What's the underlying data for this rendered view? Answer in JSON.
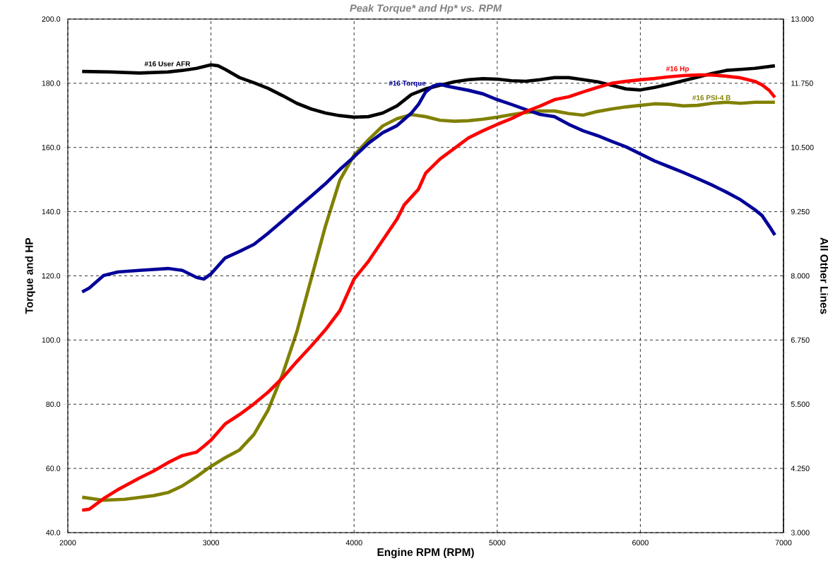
{
  "chart_data": {
    "type": "line",
    "title": "Peak Torque* and Hp* vs. RPM",
    "xlabel": "Engine RPM (RPM)",
    "ylabel": "Torque and HP",
    "y2label": "All Other Lines",
    "xlim": [
      2000,
      7000
    ],
    "xticks": [
      2000,
      3000,
      4000,
      5000,
      6000,
      7000
    ],
    "ylim": [
      40,
      200
    ],
    "yticks": [
      {
        "value": 40,
        "label": "40.0"
      },
      {
        "value": 60,
        "label": "60.0"
      },
      {
        "value": 80,
        "label": "80.0"
      },
      {
        "value": 100,
        "label": "100.0"
      },
      {
        "value": 120,
        "label": "120.0"
      },
      {
        "value": 140,
        "label": "140.0"
      },
      {
        "value": 160,
        "label": "160.0"
      },
      {
        "value": 180,
        "label": "180.0"
      },
      {
        "value": 200,
        "label": "200.0"
      }
    ],
    "y2lim": [
      3,
      13
    ],
    "y2ticks": [
      {
        "value": 3,
        "label": "3.000"
      },
      {
        "value": 4.25,
        "label": "4.250"
      },
      {
        "value": 5.5,
        "label": "5.500"
      },
      {
        "value": 6.75,
        "label": "6.750"
      },
      {
        "value": 8,
        "label": "8.000"
      },
      {
        "value": 9.25,
        "label": "9.250"
      },
      {
        "value": 10.5,
        "label": "10.500"
      },
      {
        "value": 11.75,
        "label": "11.750"
      },
      {
        "value": 13,
        "label": "13.000"
      }
    ],
    "grid": true,
    "marker": "none",
    "line_style": "solid",
    "series": [
      {
        "name": "#16 User AFR",
        "color": "#000000",
        "axis": "y2",
        "x": [
          2100,
          2300,
          2500,
          2700,
          2800,
          2900,
          3000,
          3050,
          3100,
          3200,
          3300,
          3400,
          3500,
          3600,
          3700,
          3800,
          3900,
          4000,
          4100,
          4200,
          4300,
          4400,
          4500,
          4600,
          4700,
          4800,
          4900,
          5000,
          5100,
          5200,
          5300,
          5400,
          5500,
          5600,
          5700,
          5800,
          5900,
          6000,
          6100,
          6200,
          6300,
          6400,
          6500,
          6600,
          6700,
          6800,
          6940
        ],
        "values": [
          11.98,
          11.97,
          11.95,
          11.97,
          12.0,
          12.04,
          12.11,
          12.09,
          12.02,
          11.86,
          11.76,
          11.65,
          11.51,
          11.36,
          11.25,
          11.17,
          11.12,
          11.09,
          11.1,
          11.17,
          11.31,
          11.53,
          11.64,
          11.71,
          11.78,
          11.82,
          11.84,
          11.83,
          11.8,
          11.79,
          11.82,
          11.86,
          11.86,
          11.82,
          11.78,
          11.71,
          11.64,
          11.62,
          11.67,
          11.73,
          11.8,
          11.87,
          11.94,
          12.0,
          12.02,
          12.04,
          12.09
        ]
      },
      {
        "name": "#16 Torque",
        "color": "#000099",
        "x": [
          2100,
          2150,
          2250,
          2350,
          2500,
          2700,
          2800,
          2900,
          2950,
          3000,
          3100,
          3200,
          3300,
          3400,
          3500,
          3600,
          3700,
          3800,
          3900,
          4000,
          4100,
          4200,
          4300,
          4400,
          4450,
          4500,
          4550,
          4600,
          4650,
          4800,
          4900,
          5000,
          5100,
          5200,
          5300,
          5400,
          5500,
          5600,
          5700,
          5800,
          5900,
          6000,
          6100,
          6200,
          6300,
          6400,
          6500,
          6600,
          6700,
          6800,
          6850,
          6900,
          6940
        ],
        "values": [
          115.0,
          116.2,
          120.1,
          121.2,
          121.7,
          122.3,
          121.7,
          119.5,
          119.0,
          120.6,
          125.6,
          127.6,
          129.8,
          133.3,
          137.1,
          141.0,
          144.8,
          148.7,
          153.1,
          157.1,
          161.3,
          164.6,
          166.8,
          170.7,
          173.4,
          177.3,
          179.1,
          179.7,
          179.1,
          177.8,
          176.7,
          174.9,
          173.4,
          171.8,
          170.3,
          169.6,
          167.2,
          165.2,
          163.7,
          161.9,
          160.2,
          158.0,
          155.8,
          154.0,
          152.2,
          150.3,
          148.3,
          146.1,
          143.7,
          140.6,
          138.8,
          135.5,
          132.7
        ]
      },
      {
        "name": "#16 Hp",
        "color": "#ff0000",
        "x": [
          2100,
          2150,
          2250,
          2350,
          2500,
          2600,
          2700,
          2800,
          2900,
          2950,
          3000,
          3100,
          3200,
          3300,
          3400,
          3500,
          3600,
          3700,
          3800,
          3900,
          4000,
          4100,
          4200,
          4300,
          4350,
          4450,
          4500,
          4600,
          4700,
          4800,
          4900,
          5000,
          5100,
          5200,
          5300,
          5400,
          5500,
          5600,
          5700,
          5800,
          5900,
          6000,
          6100,
          6200,
          6300,
          6400,
          6500,
          6600,
          6700,
          6800,
          6850,
          6900,
          6940
        ],
        "values": [
          47.0,
          47.3,
          50.6,
          53.4,
          57.0,
          59.2,
          61.8,
          64.0,
          65.1,
          66.9,
          68.8,
          73.9,
          76.8,
          80.1,
          83.8,
          88.2,
          93.3,
          98.1,
          103.2,
          109.1,
          119.0,
          124.5,
          131.1,
          137.7,
          142.1,
          147.0,
          152.0,
          156.4,
          159.7,
          163.0,
          165.2,
          167.2,
          169.0,
          171.2,
          172.9,
          174.9,
          175.8,
          177.3,
          178.7,
          180.0,
          180.6,
          181.1,
          181.5,
          182.0,
          182.4,
          182.6,
          182.6,
          182.2,
          181.7,
          180.6,
          179.5,
          177.8,
          175.6
        ]
      },
      {
        "name": "#16 PSI-4 B",
        "color": "#808000",
        "axis": "y2",
        "x": [
          2100,
          2250,
          2400,
          2600,
          2700,
          2800,
          2900,
          3000,
          3100,
          3200,
          3300,
          3400,
          3500,
          3600,
          3700,
          3800,
          3900,
          4000,
          4100,
          4200,
          4300,
          4400,
          4500,
          4600,
          4700,
          4800,
          4900,
          5000,
          5100,
          5200,
          5300,
          5400,
          5500,
          5600,
          5700,
          5800,
          5900,
          6000,
          6100,
          6200,
          6300,
          6400,
          6500,
          6600,
          6700,
          6800,
          6940
        ],
        "values": [
          3.69,
          3.63,
          3.65,
          3.72,
          3.78,
          3.91,
          4.09,
          4.29,
          4.46,
          4.61,
          4.91,
          5.39,
          6.08,
          6.91,
          7.94,
          8.97,
          9.86,
          10.35,
          10.65,
          10.92,
          11.06,
          11.14,
          11.1,
          11.03,
          11.01,
          11.02,
          11.05,
          11.09,
          11.14,
          11.18,
          11.21,
          11.21,
          11.16,
          11.13,
          11.2,
          11.25,
          11.29,
          11.32,
          11.35,
          11.34,
          11.31,
          11.32,
          11.36,
          11.38,
          11.36,
          11.38,
          11.38
        ]
      }
    ]
  }
}
